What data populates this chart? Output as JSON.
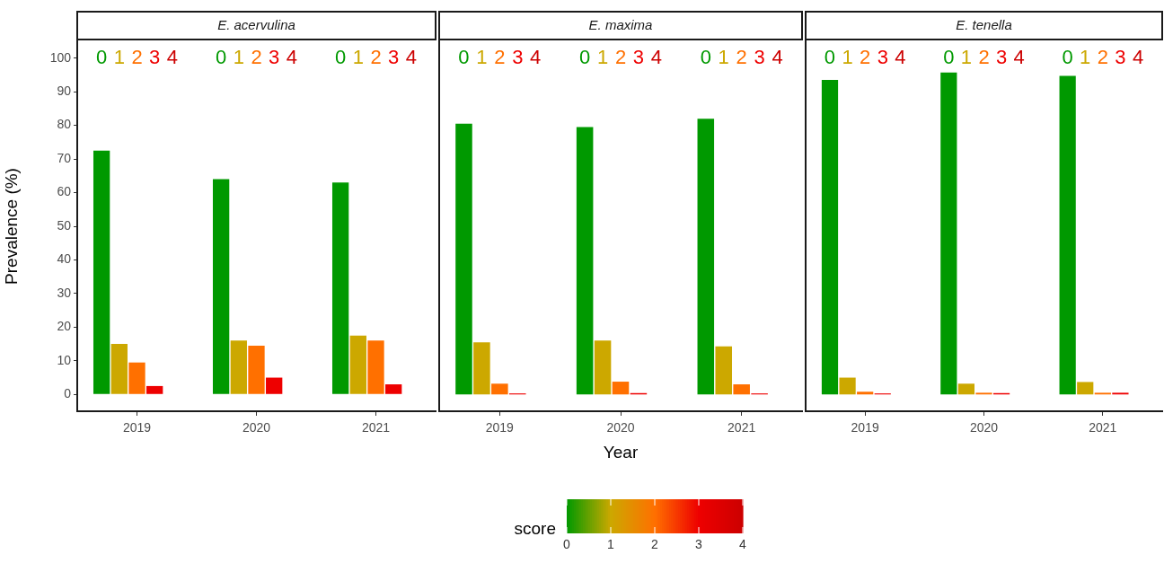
{
  "chart_data": [
    {
      "type": "bar",
      "title": "E. acervulina",
      "ylabel": "Prevalence (%)",
      "categories": [
        "2019",
        "2020",
        "2021"
      ],
      "ylim": [
        -5,
        105
      ],
      "yticks": [
        0,
        10,
        20,
        30,
        40,
        50,
        60,
        70,
        80,
        90,
        100
      ],
      "series": [
        {
          "name": "0",
          "color": "#009900",
          "values": [
            72.5,
            64,
            63
          ]
        },
        {
          "name": "1",
          "color": "#cca800",
          "values": [
            15,
            16,
            17.5
          ]
        },
        {
          "name": "2",
          "color": "#ff7000",
          "values": [
            9.5,
            14.5,
            16
          ]
        },
        {
          "name": "3",
          "color": "#ee0000",
          "values": [
            2.5,
            5,
            3
          ]
        },
        {
          "name": "4",
          "color": "#cc0000",
          "values": [
            0,
            0,
            0
          ]
        }
      ]
    },
    {
      "type": "bar",
      "title": "E. maxima",
      "xlabel": "Year",
      "clabel": "score",
      "clim": [
        0,
        4
      ],
      "cticks": [
        0,
        1,
        2,
        3,
        4
      ],
      "tick_labels": "x",
      "categories": [
        "2019",
        "2020",
        "2021"
      ],
      "ylim": [
        -5,
        105
      ],
      "yticks": [
        0,
        10,
        20,
        30,
        40,
        50,
        60,
        70,
        80,
        90,
        100
      ],
      "series": [
        {
          "name": "0",
          "color": "#009900",
          "values": [
            80.5,
            79.5,
            82
          ]
        },
        {
          "name": "1",
          "color": "#cca800",
          "values": [
            15.5,
            16,
            14.3
          ]
        },
        {
          "name": "2",
          "color": "#ff7000",
          "values": [
            3.2,
            3.8,
            3
          ]
        },
        {
          "name": "3",
          "color": "#ee0000",
          "values": [
            0.3,
            0.4,
            0.3
          ]
        },
        {
          "name": "4",
          "color": "#cc0000",
          "values": [
            0,
            0,
            0
          ]
        }
      ]
    },
    {
      "type": "bar",
      "title": "E. tenella",
      "tick_labels": "x",
      "categories": [
        "2019",
        "2020",
        "2021"
      ],
      "ylim": [
        -5,
        105
      ],
      "yticks": [
        0,
        10,
        20,
        30,
        40,
        50,
        60,
        70,
        80,
        90,
        100
      ],
      "series": [
        {
          "name": "0",
          "color": "#009900",
          "values": [
            93.5,
            95.7,
            94.7
          ]
        },
        {
          "name": "1",
          "color": "#cca800",
          "values": [
            5,
            3.2,
            3.7
          ]
        },
        {
          "name": "2",
          "color": "#ff7000",
          "values": [
            0.8,
            0.5,
            0.5
          ]
        },
        {
          "name": "3",
          "color": "#ee0000",
          "values": [
            0.3,
            0.4,
            0.5
          ]
        },
        {
          "name": "4",
          "color": "#cc0000",
          "values": [
            0,
            0,
            0
          ]
        }
      ]
    }
  ]
}
